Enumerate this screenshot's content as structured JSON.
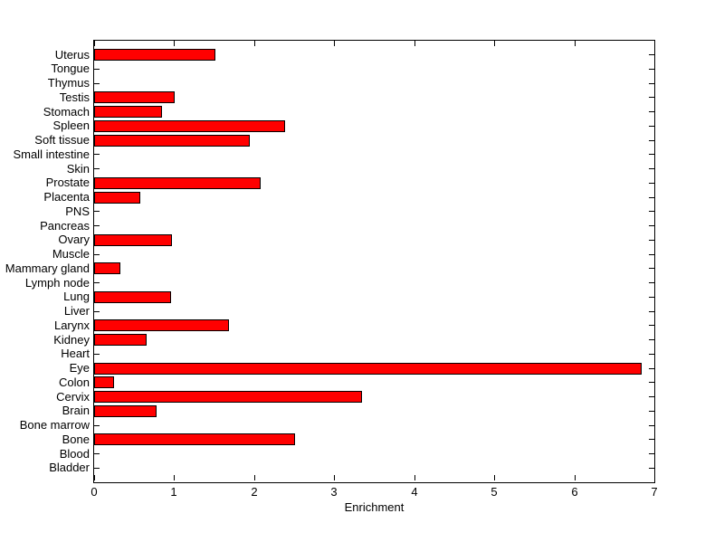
{
  "figure": {
    "background_color": "#ffffff",
    "axis_color": "#000000"
  },
  "chart_data": {
    "type": "bar",
    "orientation": "horizontal",
    "title": "",
    "xlabel": "Enrichment",
    "ylabel": "",
    "xlim": [
      0,
      7
    ],
    "x_ticks": [
      0,
      1,
      2,
      3,
      4,
      5,
      6,
      7
    ],
    "grid": false,
    "legend": null,
    "bar_color": "#ff0000",
    "bar_edge_color": "#000000",
    "categories": [
      "Uterus",
      "Tongue",
      "Thymus",
      "Testis",
      "Stomach",
      "Spleen",
      "Soft tissue",
      "Small intestine",
      "Skin",
      "Prostate",
      "Placenta",
      "PNS",
      "Pancreas",
      "Ovary",
      "Muscle",
      "Mammary gland",
      "Lymph node",
      "Lung",
      "Liver",
      "Larynx",
      "Kidney",
      "Heart",
      "Eye",
      "Colon",
      "Cervix",
      "Brain",
      "Bone marrow",
      "Bone",
      "Blood",
      "Bladder"
    ],
    "values": [
      1.52,
      0,
      0,
      1.01,
      0.85,
      2.39,
      1.94,
      0,
      0,
      2.08,
      0.58,
      0,
      0,
      0.97,
      0,
      0.33,
      0,
      0.96,
      0,
      1.68,
      0.66,
      0,
      6.84,
      0.25,
      3.35,
      0.78,
      0,
      2.51,
      0,
      0
    ]
  }
}
